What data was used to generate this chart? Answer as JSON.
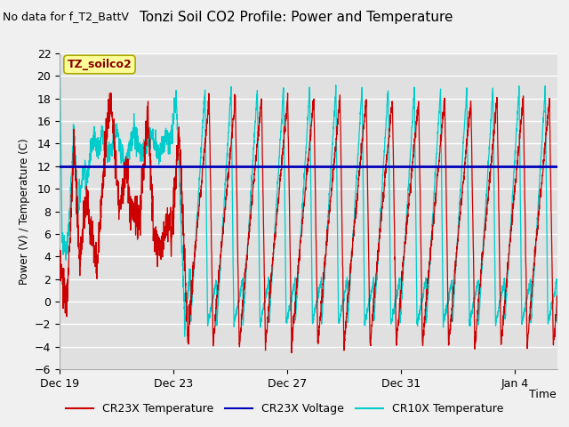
{
  "title": "Tonzi Soil CO2 Profile: Power and Temperature",
  "subtitle": "No data for f_T2_BattV",
  "ylabel": "Power (V) / Temperature (C)",
  "xlabel": "Time",
  "ylim": [
    -6,
    22
  ],
  "yticks": [
    -6,
    -4,
    -2,
    0,
    2,
    4,
    6,
    8,
    10,
    12,
    14,
    16,
    18,
    20,
    22
  ],
  "voltage_line_y": 12.0,
  "voltage_color": "#0000bb",
  "cr23x_temp_color": "#cc0000",
  "cr10x_temp_color": "#00cccc",
  "fig_bg_color": "#f0f0f0",
  "plot_bg_color": "#e0e0e0",
  "legend_box_color": "#ffff99",
  "legend_box_edge": "#aaaa00",
  "annotation_text": "TZ_soilco2",
  "tick_labels": [
    "Dec 19",
    "Dec 23",
    "Dec 27",
    "Dec 31",
    "Jan 4"
  ],
  "tick_positions": [
    0,
    4,
    8,
    12,
    16
  ],
  "xlim": [
    0,
    17.5
  ]
}
